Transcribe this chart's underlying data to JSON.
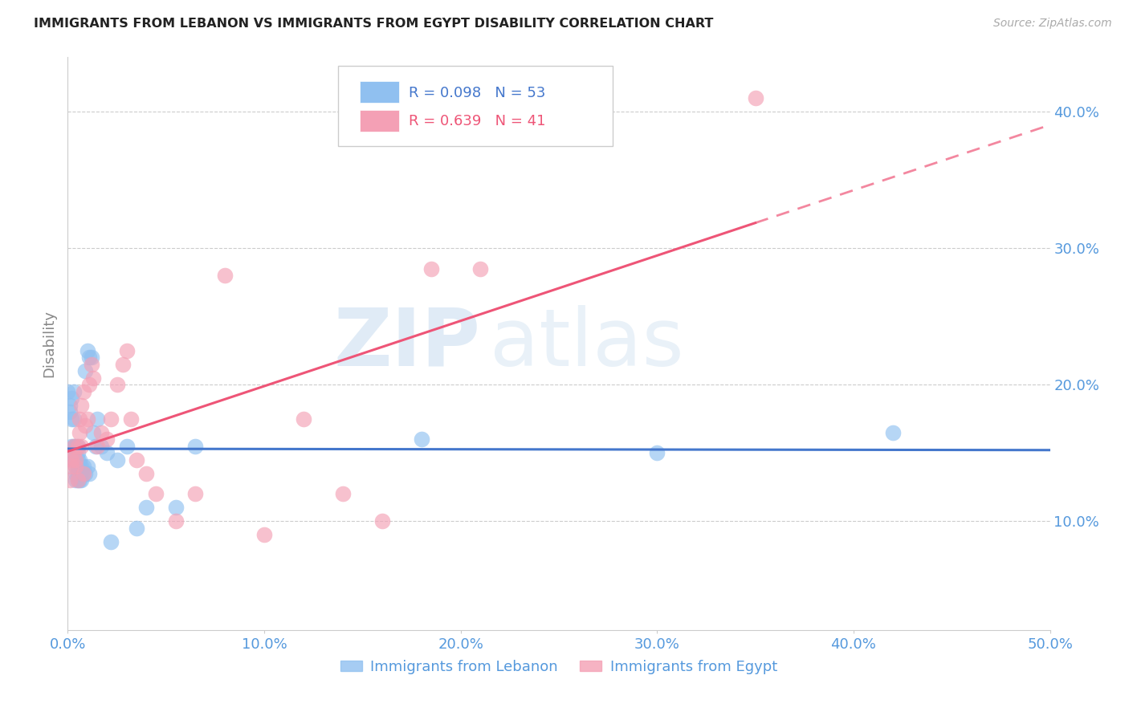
{
  "title": "IMMIGRANTS FROM LEBANON VS IMMIGRANTS FROM EGYPT DISABILITY CORRELATION CHART",
  "source": "Source: ZipAtlas.com",
  "ylabel": "Disability",
  "watermark_zip": "ZIP",
  "watermark_atlas": "atlas",
  "lebanon_color": "#90C0F0",
  "egypt_color": "#F4A0B5",
  "lebanon_line_color": "#4477CC",
  "egypt_line_color": "#EE5577",
  "R_lebanon": 0.098,
  "N_lebanon": 53,
  "R_egypt": 0.639,
  "N_egypt": 41,
  "xlim": [
    0.0,
    0.5
  ],
  "ylim": [
    0.02,
    0.44
  ],
  "ytick_values": [
    0.1,
    0.2,
    0.3,
    0.4
  ],
  "xtick_values": [
    0.0,
    0.1,
    0.2,
    0.3,
    0.4,
    0.5
  ],
  "lebanon_x": [
    0.0,
    0.001,
    0.001,
    0.002,
    0.002,
    0.002,
    0.003,
    0.003,
    0.003,
    0.003,
    0.003,
    0.004,
    0.004,
    0.004,
    0.004,
    0.004,
    0.005,
    0.005,
    0.005,
    0.005,
    0.005,
    0.005,
    0.006,
    0.006,
    0.006,
    0.006,
    0.007,
    0.007,
    0.007,
    0.008,
    0.008,
    0.009,
    0.009,
    0.01,
    0.01,
    0.011,
    0.011,
    0.012,
    0.013,
    0.014,
    0.015,
    0.017,
    0.02,
    0.022,
    0.025,
    0.03,
    0.035,
    0.04,
    0.055,
    0.065,
    0.18,
    0.3,
    0.42
  ],
  "lebanon_y": [
    0.195,
    0.185,
    0.18,
    0.19,
    0.175,
    0.155,
    0.195,
    0.175,
    0.155,
    0.15,
    0.145,
    0.155,
    0.145,
    0.14,
    0.135,
    0.13,
    0.155,
    0.15,
    0.145,
    0.14,
    0.135,
    0.13,
    0.145,
    0.14,
    0.135,
    0.13,
    0.14,
    0.135,
    0.13,
    0.14,
    0.135,
    0.21,
    0.135,
    0.225,
    0.14,
    0.22,
    0.135,
    0.22,
    0.165,
    0.155,
    0.175,
    0.155,
    0.15,
    0.085,
    0.145,
    0.155,
    0.095,
    0.11,
    0.11,
    0.155,
    0.16,
    0.15,
    0.165
  ],
  "egypt_x": [
    0.001,
    0.002,
    0.002,
    0.003,
    0.003,
    0.004,
    0.004,
    0.005,
    0.005,
    0.006,
    0.006,
    0.007,
    0.007,
    0.008,
    0.008,
    0.009,
    0.01,
    0.011,
    0.012,
    0.013,
    0.015,
    0.017,
    0.02,
    0.022,
    0.025,
    0.028,
    0.03,
    0.032,
    0.035,
    0.04,
    0.045,
    0.055,
    0.065,
    0.08,
    0.1,
    0.12,
    0.14,
    0.16,
    0.185,
    0.21,
    0.35
  ],
  "egypt_y": [
    0.13,
    0.145,
    0.14,
    0.15,
    0.155,
    0.14,
    0.145,
    0.155,
    0.13,
    0.175,
    0.165,
    0.185,
    0.155,
    0.195,
    0.135,
    0.17,
    0.175,
    0.2,
    0.215,
    0.205,
    0.155,
    0.165,
    0.16,
    0.175,
    0.2,
    0.215,
    0.225,
    0.175,
    0.145,
    0.135,
    0.12,
    0.1,
    0.12,
    0.28,
    0.09,
    0.175,
    0.12,
    0.1,
    0.285,
    0.285,
    0.41
  ],
  "background_color": "#FFFFFF",
  "grid_color": "#CCCCCC",
  "tick_color": "#5599DD",
  "title_color": "#222222"
}
